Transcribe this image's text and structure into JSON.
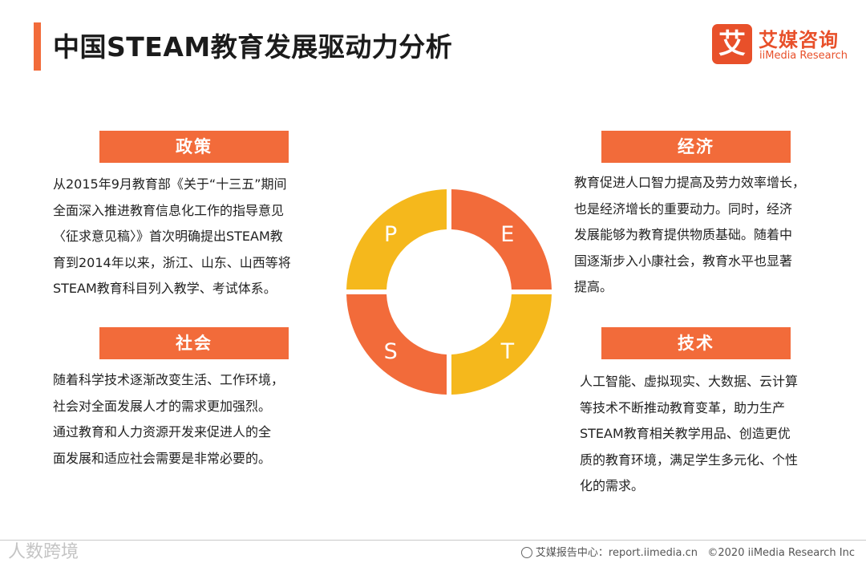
{
  "title": "中国STEAM教育发展驱动力分析",
  "logo": {
    "mark": "艾",
    "name_cn": "艾媒咨询",
    "name_en": "iiMedia Research"
  },
  "quadrants": {
    "policy": {
      "label": "政策",
      "lines": [
        "从2015年9月教育部《关于“十三五”期间",
        "全面深入推进教育信息化工作的指导意见",
        "〈征求意见稿〉》首次明确提出STEAM教",
        "育到2014年以来，浙江、山东、山西等将",
        "STEAM教育科目列入教学、考试体系。"
      ]
    },
    "economy": {
      "label": "经济",
      "lines": [
        "教育促进人口智力提高及劳力效率增长，",
        "也是经济增长的重要动力。同时，经济",
        "发展能够为教育提供物质基础。随着中",
        "国逐渐步入小康社会，教育水平也显著",
        "提高。"
      ]
    },
    "society": {
      "label": "社会",
      "lines": [
        "随着科学技术逐渐改变生活、工作环境，",
        "社会对全面发展人才的需求更加强烈。",
        "通过教育和人力资源开发来促进人的全",
        "面发展和适应社会需要是非常必要的。"
      ]
    },
    "technology": {
      "label": "技术",
      "lines": [
        "人工智能、虚拟现实、大数据、云计算",
        "等技术不断推动教育变革，助力生产",
        "STEAM教育相关教学用品、创造更优",
        "质的教育环境，满足学生多元化、个性",
        "化的需求。"
      ]
    }
  },
  "cycle": {
    "segments": [
      {
        "letter": "P",
        "color": "#f5b81c"
      },
      {
        "letter": "E",
        "color": "#f26b3a"
      },
      {
        "letter": "T",
        "color": "#f5b81c"
      },
      {
        "letter": "S",
        "color": "#f26b3a"
      }
    ]
  },
  "footer": {
    "watermark": "人数跨境",
    "source": "艾媒报告中心：report.iimedia.cn",
    "copyright": "©2020  iiMedia Research  Inc"
  }
}
